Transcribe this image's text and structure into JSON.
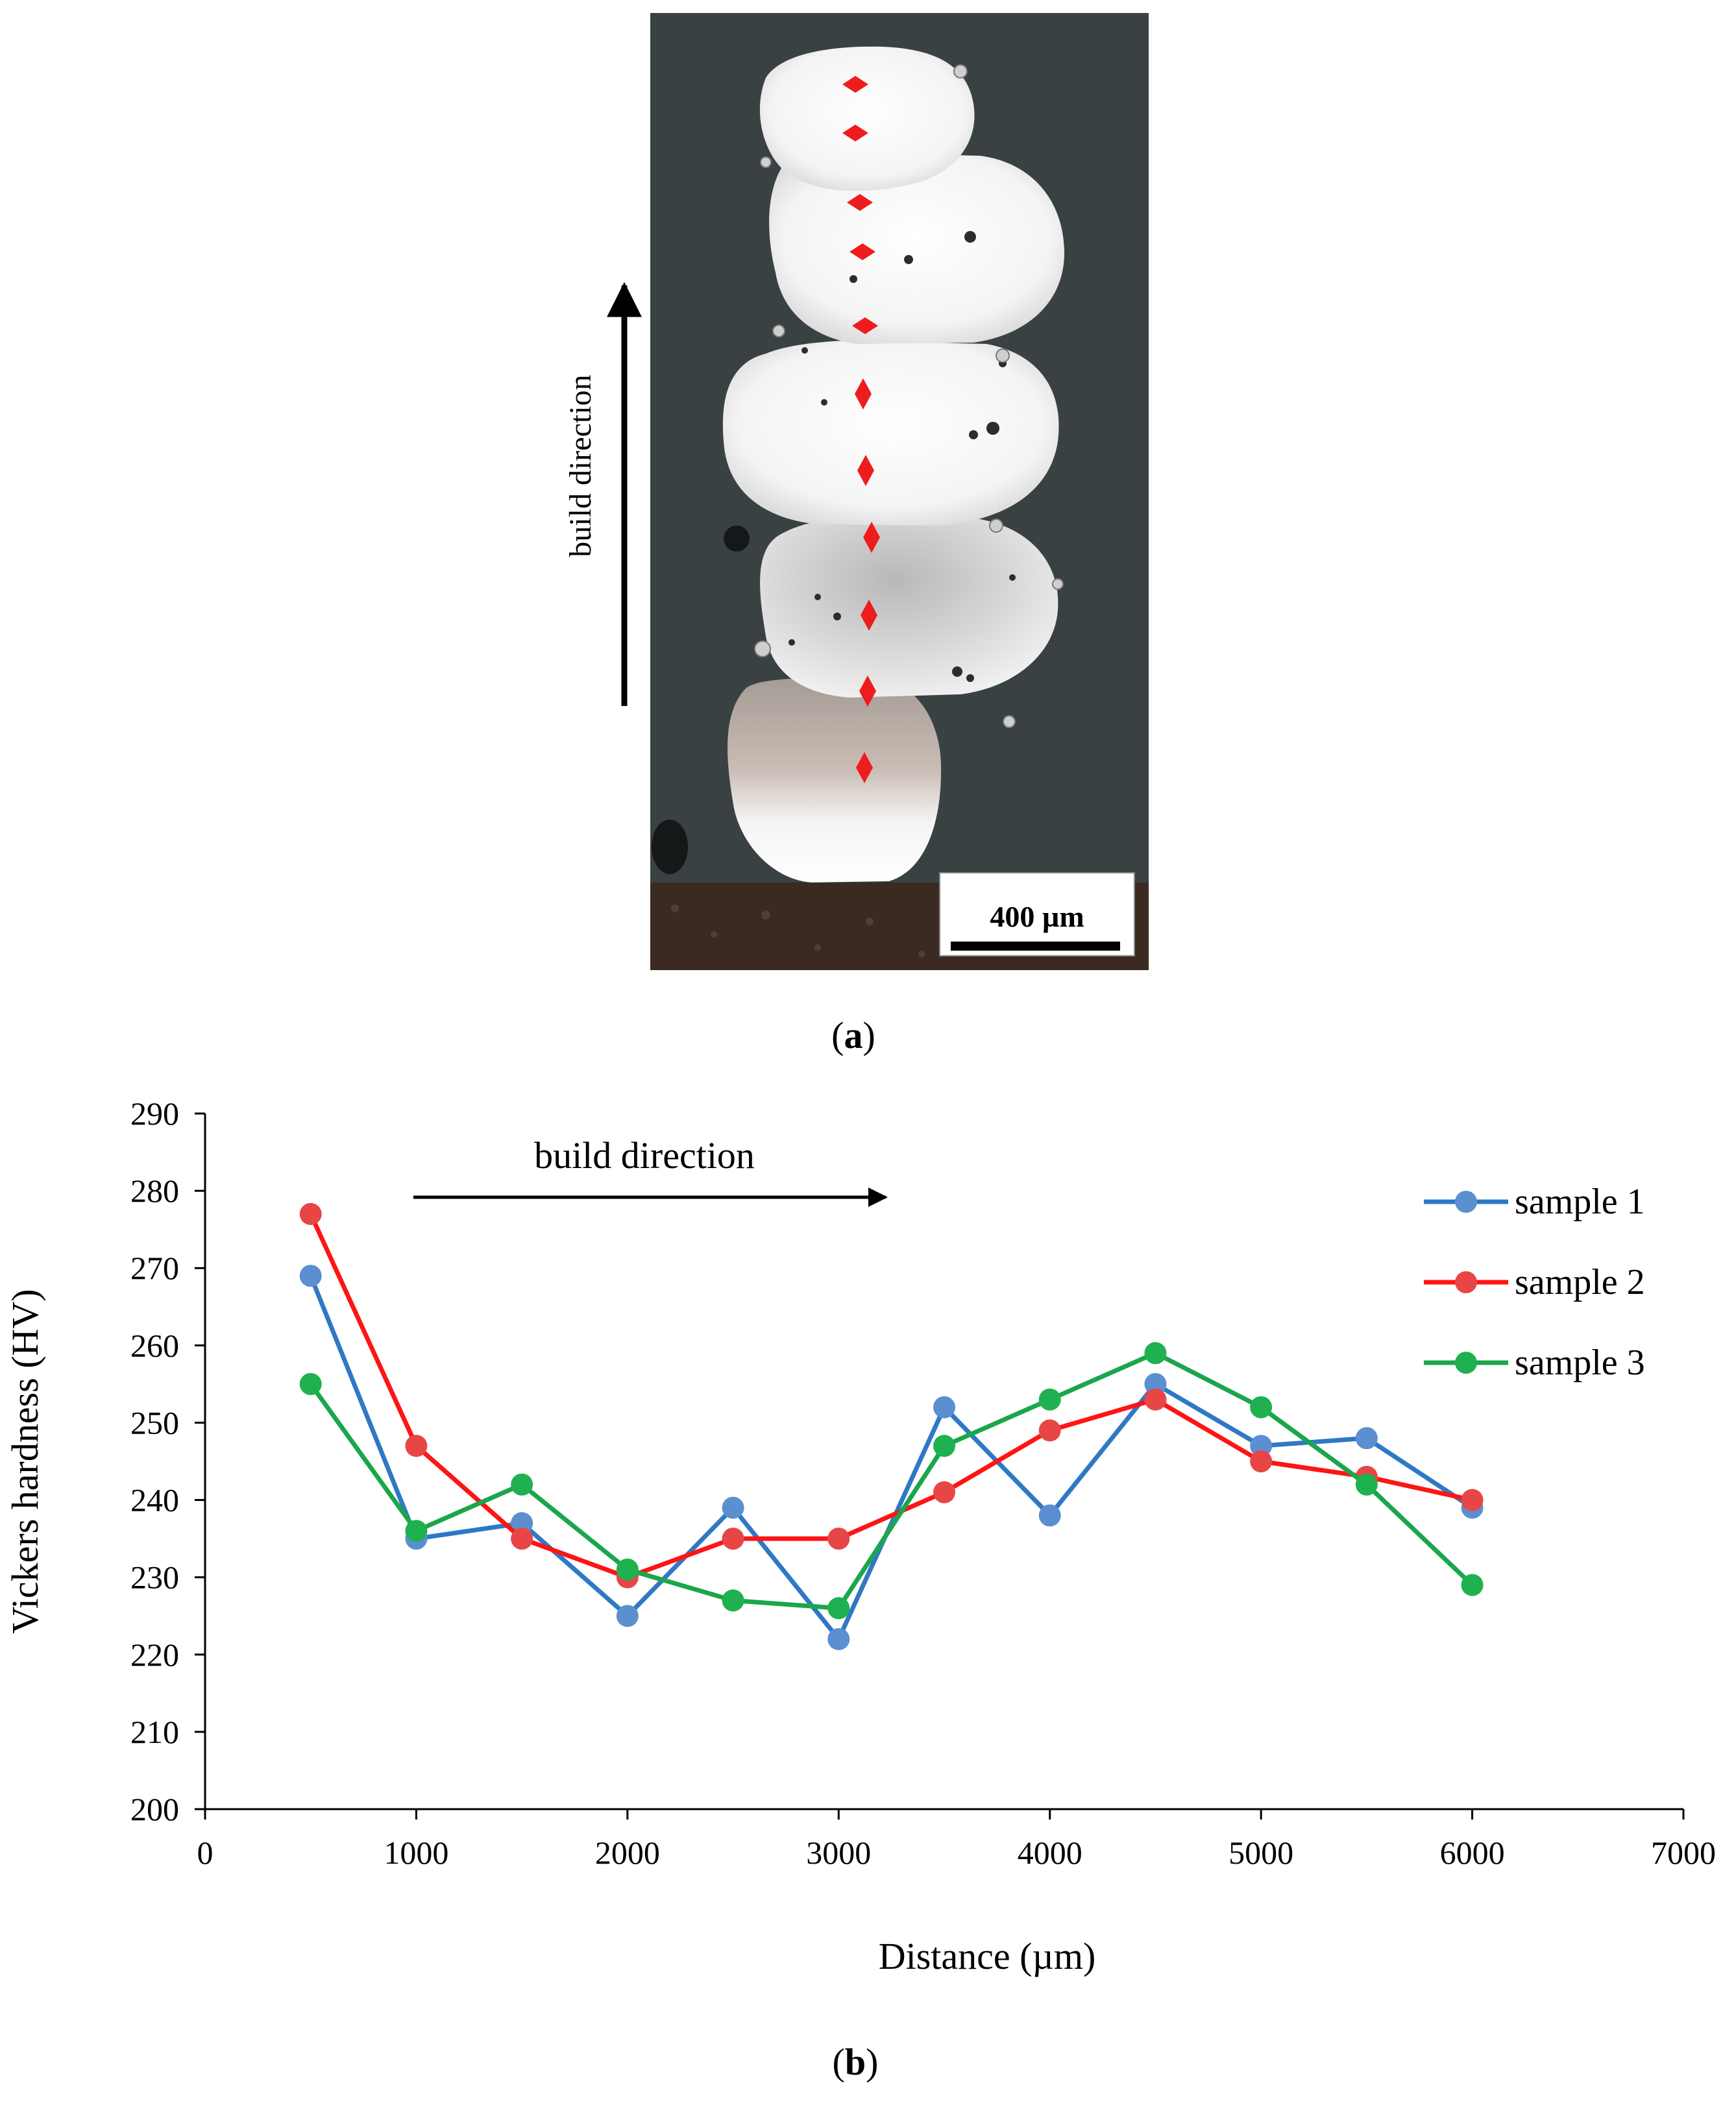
{
  "panel_a": {
    "caption_letter": "a",
    "arrow_label": "build direction",
    "scale_bar_label": "400 µm",
    "marker_color": "#ee1c1c",
    "marker_count": 11
  },
  "panel_b": {
    "caption_letter": "b",
    "annotation": "build direction"
  },
  "chart_data": {
    "type": "line",
    "title": "",
    "xlabel": "Distance (µm)",
    "ylabel": "Vickers hardness (HV)",
    "xlim": [
      0,
      7000
    ],
    "ylim": [
      200,
      290
    ],
    "xticks": [
      0,
      1000,
      2000,
      3000,
      4000,
      5000,
      6000,
      7000
    ],
    "yticks": [
      200,
      210,
      220,
      230,
      240,
      250,
      260,
      270,
      280,
      290
    ],
    "grid": false,
    "legend_position": "top-right",
    "x": [
      500,
      1000,
      1500,
      2000,
      2500,
      3000,
      3500,
      4000,
      4500,
      5000,
      5500,
      6000
    ],
    "series": [
      {
        "name": "sample 1",
        "line_color": "#2f78c4",
        "marker_color": "#5b8fd0",
        "values": [
          269,
          235,
          237,
          225,
          239,
          222,
          252,
          238,
          255,
          247,
          248,
          239
        ]
      },
      {
        "name": "sample 2",
        "line_color": "#ff1414",
        "marker_color": "#e84646",
        "values": [
          277,
          247,
          235,
          230,
          235,
          235,
          241,
          249,
          253,
          245,
          243,
          240
        ]
      },
      {
        "name": "sample 3",
        "line_color": "#1aa64a",
        "marker_color": "#1fb14f",
        "values": [
          255,
          236,
          242,
          231,
          227,
          226,
          247,
          253,
          259,
          252,
          242,
          229
        ]
      }
    ]
  }
}
